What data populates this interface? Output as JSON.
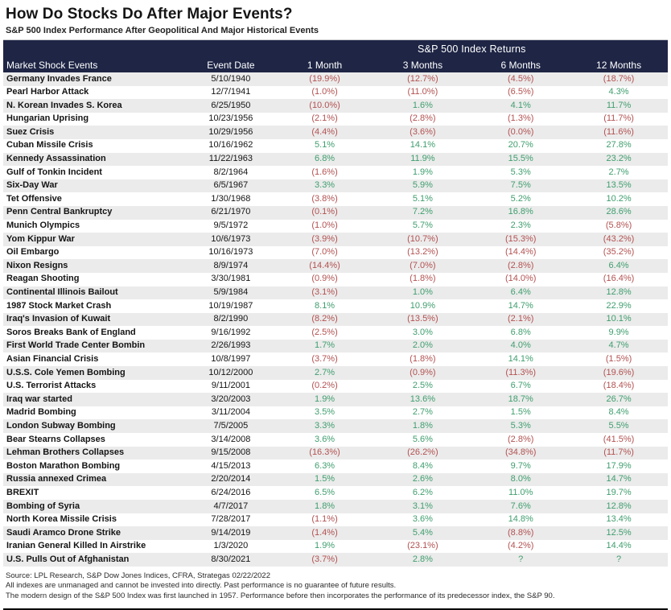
{
  "page": {
    "title": "How Do Stocks Do After Major Events?",
    "subtitle": "S&P 500 Index Performance After Geopolitical And Major Historical Events"
  },
  "chart_data": {
    "type": "table",
    "group_header": "S&P 500 Index Returns",
    "columns": [
      "Market Shock Events",
      "Event Date",
      "1 Month",
      "3 Months",
      "6 Months",
      "12 Months"
    ],
    "rows": [
      [
        "Germany Invades France",
        "5/10/1940",
        "(19.9%)",
        "(12.7%)",
        "(4.5%)",
        "(18.7%)"
      ],
      [
        "Pearl Harbor Attack",
        "12/7/1941",
        "(1.0%)",
        "(11.0%)",
        "(6.5%)",
        "4.3%"
      ],
      [
        "N. Korean Invades S. Korea",
        "6/25/1950",
        "(10.0%)",
        "1.6%",
        "4.1%",
        "11.7%"
      ],
      [
        "Hungarian Uprising",
        "10/23/1956",
        "(2.1%)",
        "(2.8%)",
        "(1.3%)",
        "(11.7%)"
      ],
      [
        "Suez Crisis",
        "10/29/1956",
        "(4.4%)",
        "(3.6%)",
        "(0.0%)",
        "(11.6%)"
      ],
      [
        "Cuban Missile Crisis",
        "10/16/1962",
        "5.1%",
        "14.1%",
        "20.7%",
        "27.8%"
      ],
      [
        "Kennedy Assassination",
        "11/22/1963",
        "6.8%",
        "11.9%",
        "15.5%",
        "23.2%"
      ],
      [
        "Gulf of Tonkin Incident",
        "8/2/1964",
        "(1.6%)",
        "1.9%",
        "5.3%",
        "2.7%"
      ],
      [
        "Six-Day War",
        "6/5/1967",
        "3.3%",
        "5.9%",
        "7.5%",
        "13.5%"
      ],
      [
        "Tet Offensive",
        "1/30/1968",
        "(3.8%)",
        "5.1%",
        "5.2%",
        "10.2%"
      ],
      [
        "Penn Central Bankruptcy",
        "6/21/1970",
        "(0.1%)",
        "7.2%",
        "16.8%",
        "28.6%"
      ],
      [
        "Munich Olympics",
        "9/5/1972",
        "(1.0%)",
        "5.7%",
        "2.3%",
        "(5.8%)"
      ],
      [
        "Yom Kippur War",
        "10/6/1973",
        "(3.9%)",
        "(10.7%)",
        "(15.3%)",
        "(43.2%)"
      ],
      [
        "Oil Embargo",
        "10/16/1973",
        "(7.0%)",
        "(13.2%)",
        "(14.4%)",
        "(35.2%)"
      ],
      [
        "Nixon Resigns",
        "8/9/1974",
        "(14.4%)",
        "(7.0%)",
        "(2.8%)",
        "6.4%"
      ],
      [
        "Reagan Shooting",
        "3/30/1981",
        "(0.9%)",
        "(1.8%)",
        "(14.0%)",
        "(16.4%)"
      ],
      [
        "Continental Illinois Bailout",
        "5/9/1984",
        "(3.1%)",
        "1.0%",
        "6.4%",
        "12.8%"
      ],
      [
        "1987 Stock Market Crash",
        "10/19/1987",
        "8.1%",
        "10.9%",
        "14.7%",
        "22.9%"
      ],
      [
        "Iraq's Invasion of Kuwait",
        "8/2/1990",
        "(8.2%)",
        "(13.5%)",
        "(2.1%)",
        "10.1%"
      ],
      [
        "Soros Breaks Bank of England",
        "9/16/1992",
        "(2.5%)",
        "3.0%",
        "6.8%",
        "9.9%"
      ],
      [
        "First World Trade Center Bombin",
        "2/26/1993",
        "1.7%",
        "2.0%",
        "4.0%",
        "4.7%"
      ],
      [
        "Asian Financial Crisis",
        "10/8/1997",
        "(3.7%)",
        "(1.8%)",
        "14.1%",
        "(1.5%)"
      ],
      [
        "U.S.S. Cole Yemen Bombing",
        "10/12/2000",
        "2.7%",
        "(0.9%)",
        "(11.3%)",
        "(19.6%)"
      ],
      [
        "U.S. Terrorist Attacks",
        "9/11/2001",
        "(0.2%)",
        "2.5%",
        "6.7%",
        "(18.4%)"
      ],
      [
        "Iraq war started",
        "3/20/2003",
        "1.9%",
        "13.6%",
        "18.7%",
        "26.7%"
      ],
      [
        "Madrid Bombing",
        "3/11/2004",
        "3.5%",
        "2.7%",
        "1.5%",
        "8.4%"
      ],
      [
        "London Subway Bombing",
        "7/5/2005",
        "3.3%",
        "1.8%",
        "5.3%",
        "5.5%"
      ],
      [
        "Bear Stearns Collapses",
        "3/14/2008",
        "3.6%",
        "5.6%",
        "(2.8%)",
        "(41.5%)"
      ],
      [
        "Lehman Brothers Collapses",
        "9/15/2008",
        "(16.3%)",
        "(26.2%)",
        "(34.8%)",
        "(11.7%)"
      ],
      [
        "Boston Marathon Bombing",
        "4/15/2013",
        "6.3%",
        "8.4%",
        "9.7%",
        "17.9%"
      ],
      [
        "Russia annexed Crimea",
        "2/20/2014",
        "1.5%",
        "2.6%",
        "8.0%",
        "14.7%"
      ],
      [
        "BREXIT",
        "6/24/2016",
        "6.5%",
        "6.2%",
        "11.0%",
        "19.7%"
      ],
      [
        "Bombing of Syria",
        "4/7/2017",
        "1.8%",
        "3.1%",
        "7.6%",
        "12.8%"
      ],
      [
        "North Korea Missile Crisis",
        "7/28/2017",
        "(1.1%)",
        "3.6%",
        "14.8%",
        "13.4%"
      ],
      [
        "Saudi Aramco Drone Strike",
        "9/14/2019",
        "(1.4%)",
        "5.4%",
        "(8.8%)",
        "12.5%"
      ],
      [
        "Iranian General Killed In Airstrike",
        "1/3/2020",
        "1.9%",
        "(23.1%)",
        "(4.2%)",
        "14.4%"
      ],
      [
        "U.S. Pulls Out of Afghanistan",
        "8/30/2021",
        "(3.7%)",
        "2.8%",
        "?",
        "?"
      ]
    ]
  },
  "footnotes": [
    "Source: LPL Research, S&P Dow Jones Indices, CFRA, Strategas 02/22/2022",
    "All indexes are unmanaged and cannot be invested into directly.  Past performance is no guarantee of future results.",
    "The modern design of the S&P 500 Index was first launched in 1957. Performance before then incorporates the performance of its predecessor index, the S&P 90."
  ],
  "colors": {
    "header_bg": "#1e2545",
    "positive": "#3f9e6e",
    "negative": "#b35151",
    "row_alt": "#ebebeb"
  }
}
